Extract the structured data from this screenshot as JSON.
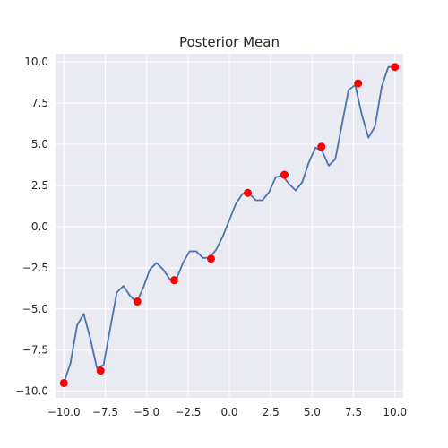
{
  "colors": {
    "plot_background": "#eaeaf2",
    "grid": "#ffffff",
    "line": "#4c72b0",
    "points": "#ff0000"
  },
  "chart_data": {
    "type": "line",
    "title": "Posterior Mean",
    "xlabel": "",
    "ylabel": "",
    "xlim": [
      -10.5,
      10.5
    ],
    "ylim": [
      -10.4,
      10.5
    ],
    "grid": true,
    "x_ticks": [
      -10.0,
      -7.5,
      -5.0,
      -2.5,
      0.0,
      2.5,
      5.0,
      7.5,
      10.0
    ],
    "y_ticks": [
      -10.0,
      -7.5,
      -5.0,
      -2.5,
      0.0,
      2.5,
      5.0,
      7.5,
      10.0
    ],
    "x_tick_labels": [
      "−10.0",
      "−7.5",
      "−5.0",
      "−2.5",
      "0.0",
      "2.5",
      "5.0",
      "7.5",
      "10.0"
    ],
    "y_tick_labels": [
      "−10.0",
      "−7.5",
      "−5.0",
      "−2.5",
      "0.0",
      "2.5",
      "5.0",
      "7.5",
      "10.0"
    ],
    "series": [
      {
        "type": "line",
        "x": [
          -10.0,
          -9.6,
          -9.2,
          -8.8,
          -8.4,
          -8.0,
          -7.6,
          -7.2,
          -6.8,
          -6.4,
          -6.0,
          -5.6,
          -5.2,
          -4.8,
          -4.4,
          -4.0,
          -3.6,
          -3.2,
          -2.8,
          -2.4,
          -2.0,
          -1.6,
          -1.2,
          -0.8,
          -0.4,
          0.0,
          0.4,
          0.8,
          1.2,
          1.6,
          2.0,
          2.4,
          2.8,
          3.2,
          3.6,
          4.0,
          4.4,
          4.8,
          5.2,
          5.6,
          6.0,
          6.4,
          6.8,
          7.2,
          7.6,
          8.0,
          8.4,
          8.8,
          9.2,
          9.6,
          10.0
        ],
        "y": [
          -9.5,
          -8.3,
          -6.0,
          -5.3,
          -6.8,
          -8.6,
          -8.4,
          -6.2,
          -4.0,
          -3.6,
          -4.2,
          -4.6,
          -3.7,
          -2.6,
          -2.2,
          -2.6,
          -3.2,
          -3.2,
          -2.2,
          -1.5,
          -1.5,
          -1.9,
          -1.9,
          -1.4,
          -0.6,
          0.4,
          1.4,
          2.0,
          2.0,
          1.6,
          1.6,
          2.1,
          3.0,
          3.1,
          2.6,
          2.2,
          2.7,
          3.9,
          4.8,
          4.6,
          3.7,
          4.1,
          6.2,
          8.3,
          8.6,
          6.8,
          5.4,
          6.1,
          8.5,
          9.7,
          9.7
        ]
      },
      {
        "type": "scatter",
        "x": [
          -10.0,
          -7.78,
          -5.56,
          -3.33,
          -1.11,
          1.11,
          3.33,
          5.56,
          7.78,
          10.0
        ],
        "y": [
          -9.5,
          -8.75,
          -4.55,
          -3.25,
          -1.95,
          2.05,
          3.15,
          4.85,
          8.7,
          9.7
        ]
      }
    ]
  }
}
